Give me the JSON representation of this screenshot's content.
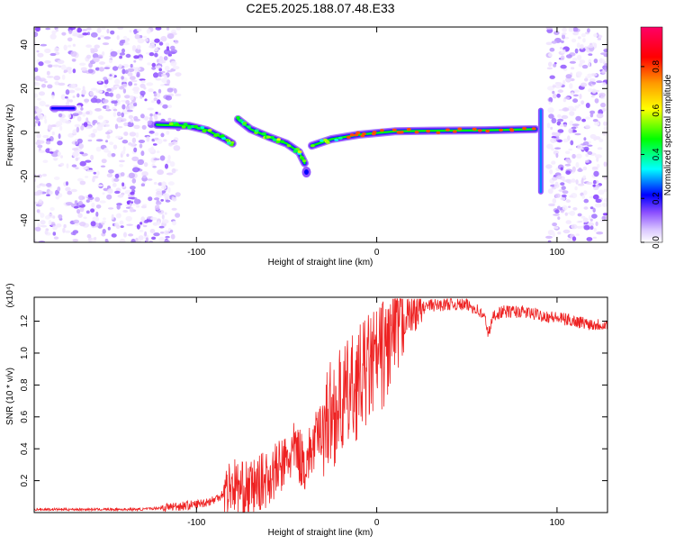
{
  "figure": {
    "title": "C2E5.2025.188.07.48.E33"
  },
  "chart_data": [
    {
      "type": "heatmap",
      "title": "C2E5.2025.188.07.48.E33",
      "xlabel": "Height of straight line (km)",
      "ylabel": "Frequency (Hz)",
      "xlim": [
        -190,
        128
      ],
      "ylim": [
        -50,
        48
      ],
      "xticks": [
        -100,
        0,
        100
      ],
      "yticks": [
        -40,
        -20,
        0,
        20,
        40
      ],
      "colorbar": {
        "label": "Normalized spectral amplitude",
        "range": [
          0.0,
          0.98
        ],
        "ticks": [
          0.0,
          0.2,
          0.4,
          0.6,
          0.8
        ],
        "colormap": "rainbow (white-violet-blue-cyan-green-yellow-orange-red-magenta)"
      },
      "ridge_segments": [
        {
          "x": [
            -122,
            -104,
            -94,
            -84,
            -80
          ],
          "y": [
            3.5,
            3.0,
            1.0,
            -3.0,
            -5.0
          ]
        },
        {
          "x": [
            -77,
            -70,
            -60,
            -50,
            -43,
            -40
          ],
          "y": [
            6.0,
            1.5,
            -2.0,
            -5.0,
            -9.0,
            -14.0
          ]
        },
        {
          "x": [
            -36,
            -25,
            -10,
            10,
            30,
            60,
            88
          ],
          "y": [
            -6.0,
            -3.0,
            -1.0,
            0.5,
            0.8,
            1.0,
            1.5
          ]
        }
      ],
      "features": [
        {
          "label": "tone",
          "x": [
            -180,
            -168
          ],
          "y": 11
        },
        {
          "label": "spike",
          "x": 91,
          "y": [
            -27,
            10
          ]
        },
        {
          "label": "low-freq blob",
          "x": -39,
          "y": -18
        }
      ],
      "noise_regions": [
        [
          -190,
          -110
        ],
        [
          95,
          128
        ]
      ],
      "colors": {
        "sequence": [
          "#ffffff",
          "#e2ccff",
          "#9966ff",
          "#6600ff",
          "#0000ff",
          "#00ffff",
          "#00ff00",
          "#ffff00",
          "#ff9900",
          "#ff0000",
          "#ff0066"
        ]
      }
    },
    {
      "type": "line",
      "xlabel": "Height of straight line (km)",
      "ylabel": "SNR (10 * v/v)",
      "multiplier": "(x10⁴)",
      "xlim": [
        -190,
        128
      ],
      "ylim": [
        0,
        1.35
      ],
      "xticks": [
        -100,
        0,
        100
      ],
      "yticks": [
        0.2,
        0.4,
        0.6,
        0.8,
        1.0,
        1.2
      ],
      "series": [
        {
          "color": "#ee2222",
          "x": [
            -190,
            -150,
            -130,
            -120,
            -110,
            -100,
            -90,
            -85,
            -80,
            -75,
            -70,
            -60,
            -50,
            -45,
            -40,
            -35,
            -30,
            -25,
            -20,
            -15,
            -10,
            -5,
            0,
            5,
            10,
            15,
            20,
            25,
            30,
            35,
            40,
            50,
            55,
            60,
            62,
            65,
            70,
            80,
            90,
            100,
            110,
            120,
            128
          ],
          "y": [
            0.02,
            0.02,
            0.02,
            0.03,
            0.04,
            0.05,
            0.08,
            0.12,
            0.18,
            0.14,
            0.15,
            0.22,
            0.32,
            0.4,
            0.3,
            0.42,
            0.55,
            0.62,
            0.68,
            0.75,
            0.82,
            0.9,
            0.95,
            1.02,
            1.12,
            1.22,
            1.25,
            1.28,
            1.3,
            1.3,
            1.31,
            1.3,
            1.28,
            1.22,
            1.12,
            1.24,
            1.26,
            1.26,
            1.24,
            1.22,
            1.2,
            1.18,
            1.18
          ]
        }
      ]
    }
  ]
}
